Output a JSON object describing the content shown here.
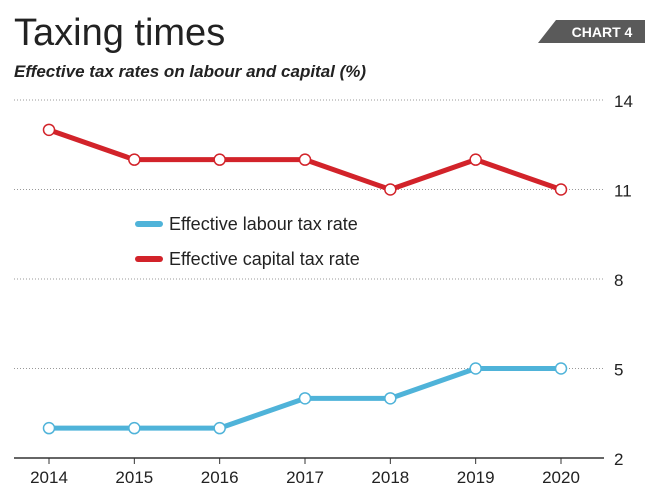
{
  "chart_data": {
    "type": "line",
    "title": "Taxing times",
    "subtitle": "Effective tax rates on labour and capital (%)",
    "badge": "CHART 4",
    "x": [
      "2014",
      "2015",
      "2016",
      "2017",
      "2018",
      "2019",
      "2020"
    ],
    "series": [
      {
        "name": "Effective labour tax rate",
        "color": "#4fb3d9",
        "values": [
          3,
          3,
          3,
          4,
          4,
          5,
          5
        ]
      },
      {
        "name": "Effective capital tax rate",
        "color": "#d2232a",
        "values": [
          13,
          12,
          12,
          12,
          11,
          12,
          11
        ]
      }
    ],
    "yticks": [
      14,
      11,
      8,
      5,
      2
    ],
    "ylim": [
      2,
      14
    ],
    "xlabel": "",
    "ylabel": "",
    "grid": true,
    "gridline_color": "#999999",
    "axis_color": "#333333",
    "badge_color": "#5a5a5a",
    "marker_fill": "#ffffff",
    "y_axis_side": "right",
    "legend_placement": "center-left"
  }
}
